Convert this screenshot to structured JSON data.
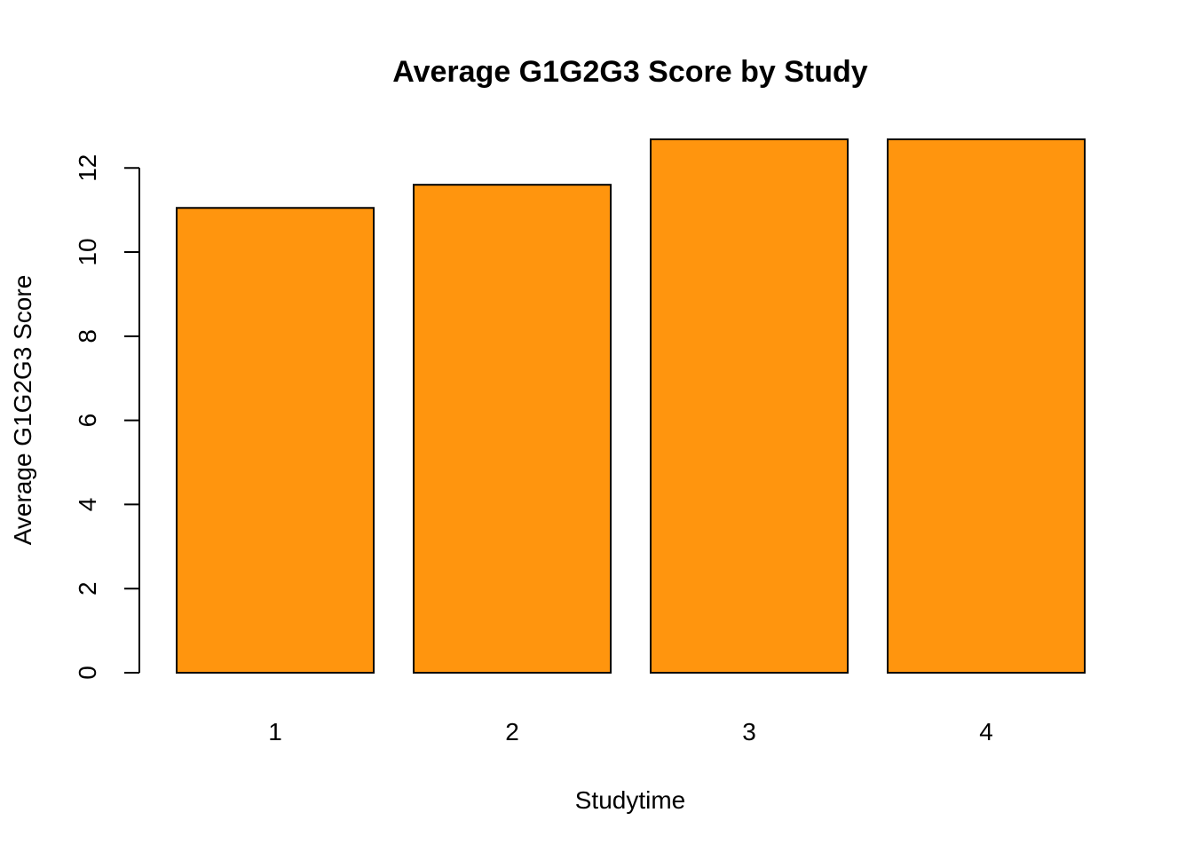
{
  "chart_data": {
    "type": "bar",
    "title": "Average G1G2G3 Score by Study",
    "xlabel": "Studytime",
    "ylabel": "Average G1G2G3 Score",
    "categories": [
      "1",
      "2",
      "3",
      "4"
    ],
    "values": [
      11.05,
      11.6,
      12.68,
      12.68
    ],
    "ylim": [
      0,
      12.68
    ],
    "yticks": [
      0,
      2,
      4,
      6,
      8,
      10,
      12
    ],
    "bar_color": "#FF950E",
    "grid": false,
    "legend": "none"
  }
}
